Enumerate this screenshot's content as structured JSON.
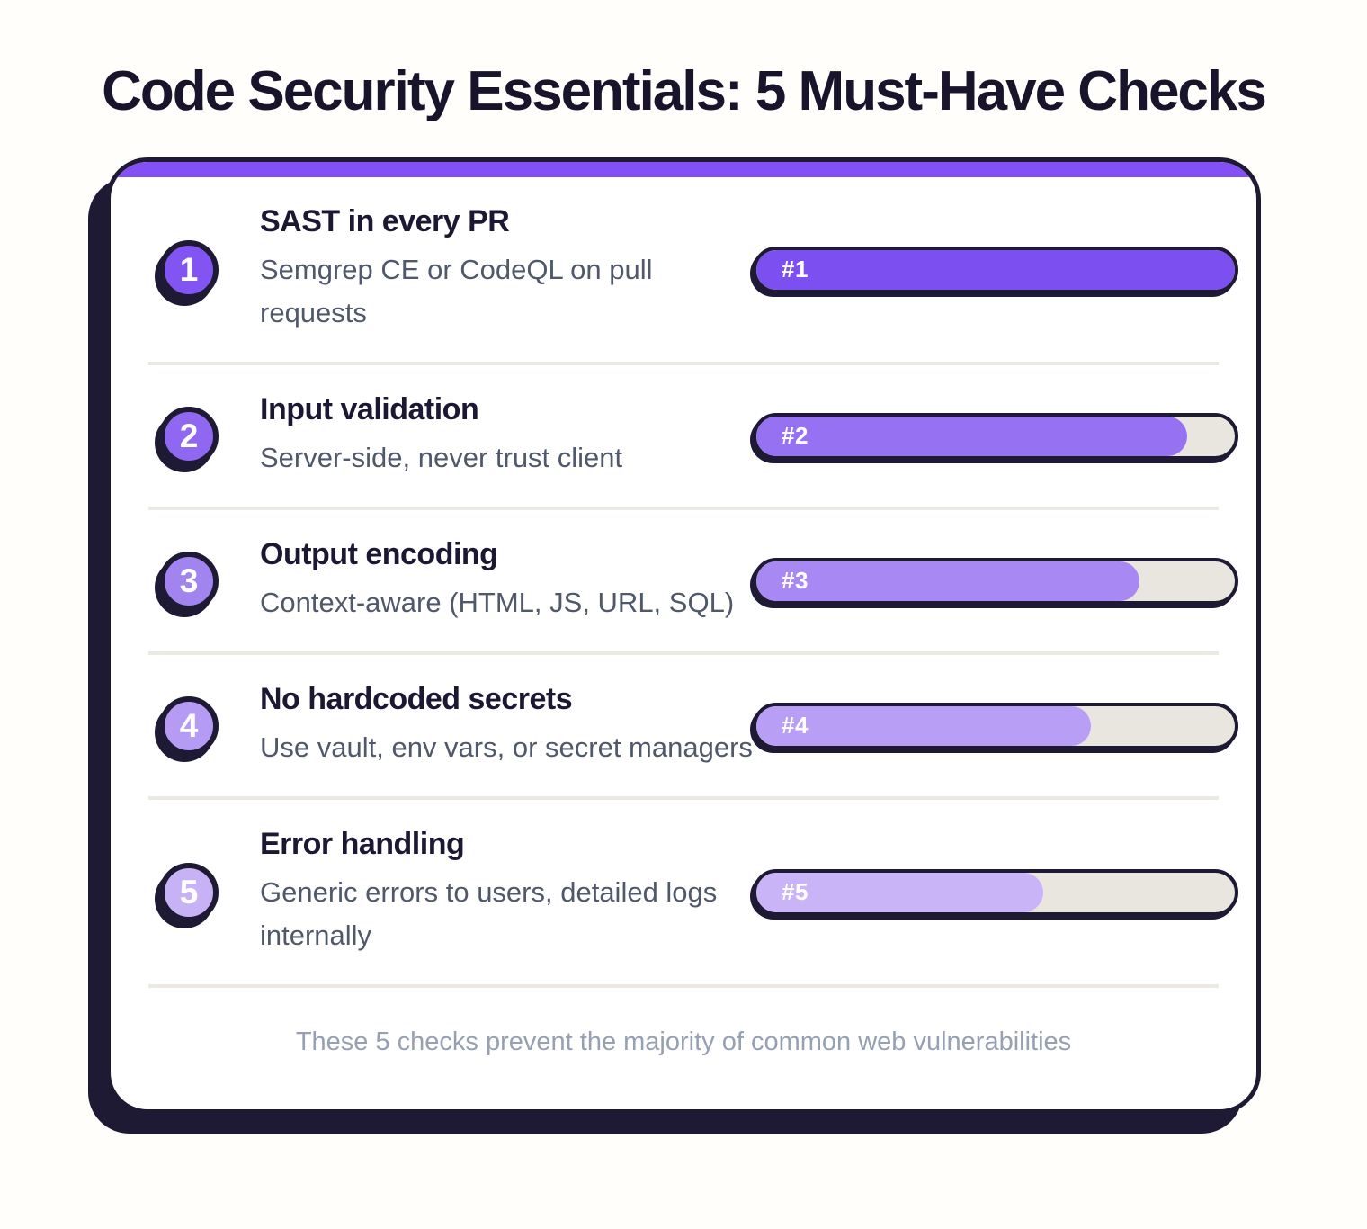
{
  "page": {
    "title": "Code Security Essentials: 5 Must-Have Checks",
    "footer_note": "These 5 checks prevent the majority of common web vulnerabilities"
  },
  "colors": {
    "outline_dark": "#1e1a34",
    "accent_strip": "#8250f4",
    "bar_track": "#e9e6df",
    "title_text": "#17142b",
    "description_text": "#4f596b",
    "footer_text": "#95a0b2",
    "card_background": "#ffffff"
  },
  "items": [
    {
      "number": "1",
      "rank_label": "#1",
      "title": "SAST in every PR",
      "description": "Semgrep CE or CodeQL on pull requests",
      "fill_percent": 100,
      "fill_color": "#7c50f0",
      "circle_color": "#8254f1"
    },
    {
      "number": "2",
      "rank_label": "#2",
      "title": "Input validation",
      "description": "Server-side, never trust client",
      "fill_percent": 90,
      "fill_color": "#9672f3",
      "circle_color": "#9067f1"
    },
    {
      "number": "3",
      "rank_label": "#3",
      "title": "Output encoding",
      "description": "Context-aware (HTML, JS, URL, SQL)",
      "fill_percent": 80,
      "fill_color": "#a888f3",
      "circle_color": "#a284f1"
    },
    {
      "number": "4",
      "rank_label": "#4",
      "title": "No hardcoded secrets",
      "description": "Use vault, env vars, or secret managers",
      "fill_percent": 70,
      "fill_color": "#b89ef5",
      "circle_color": "#b59bf3"
    },
    {
      "number": "5",
      "rank_label": "#5",
      "title": "Error handling",
      "description": "Generic errors to users, detailed logs internally",
      "fill_percent": 60,
      "fill_color": "#c9b4f7",
      "circle_color": "#c7b2f6"
    }
  ]
}
